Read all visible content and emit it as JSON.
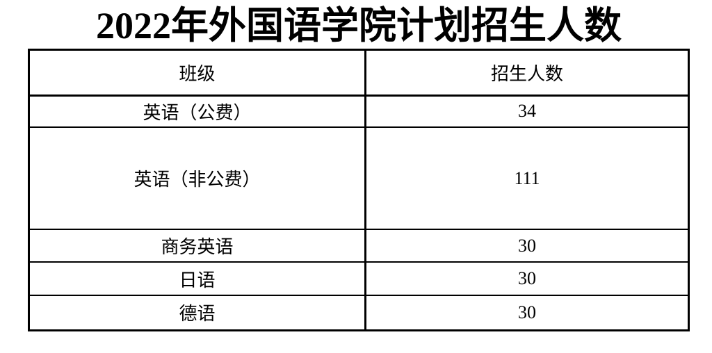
{
  "title": "2022年外国语学院计划招生人数",
  "table": {
    "headers": {
      "class": "班级",
      "count": "招生人数"
    },
    "rows": [
      {
        "class": "英语（公费）",
        "count": "34"
      },
      {
        "class": "英语（非公费）",
        "count": "111"
      },
      {
        "class": "商务英语",
        "count": "30"
      },
      {
        "class": "日语",
        "count": "30"
      },
      {
        "class": "德语",
        "count": "30"
      }
    ]
  },
  "chart_data": {
    "type": "table",
    "title": "2022年外国语学院计划招生人数",
    "columns": [
      "班级",
      "招生人数"
    ],
    "rows": [
      [
        "英语（公费）",
        34
      ],
      [
        "英语（非公费）",
        111
      ],
      [
        "商务英语",
        30
      ],
      [
        "日语",
        30
      ],
      [
        "德语",
        30
      ]
    ]
  },
  "colors": {
    "text": "#000000",
    "border": "#000000",
    "background": "#ffffff"
  }
}
